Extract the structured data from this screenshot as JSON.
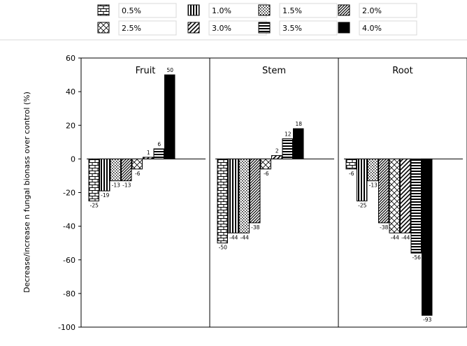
{
  "chart_data": {
    "type": "bar",
    "ylabel": "Decrease/increase n fungal bionass over control (%)",
    "ylim": [
      -100,
      60
    ],
    "yticks": [
      60,
      40,
      20,
      0,
      -20,
      -40,
      -60,
      -80,
      -100
    ],
    "legend_position": "top",
    "legend": [
      {
        "label": "0.5%",
        "pattern": "brick"
      },
      {
        "label": "1.0%",
        "pattern": "vertical-lines"
      },
      {
        "label": "1.5%",
        "pattern": "dots"
      },
      {
        "label": "2.0%",
        "pattern": "diagonal-dense"
      },
      {
        "label": "2.5%",
        "pattern": "crosshatch"
      },
      {
        "label": "3.0%",
        "pattern": "diagonal-wide"
      },
      {
        "label": "3.5%",
        "pattern": "horizontal-lines"
      },
      {
        "label": "4.0%",
        "pattern": "solid"
      }
    ],
    "panels": [
      {
        "title": "Fruit",
        "values": [
          -25,
          -19,
          -13,
          -13,
          -6,
          1,
          6,
          50
        ],
        "labels": [
          "-25",
          "-19",
          "-13",
          "-13",
          "-6",
          "1",
          "6",
          "50"
        ]
      },
      {
        "title": "Stem",
        "values": [
          -50,
          -44,
          -44,
          -38,
          -6,
          2,
          12,
          18
        ],
        "labels": [
          "-50",
          "-44",
          "-44",
          "-38",
          "-6",
          "2",
          "12",
          "18"
        ]
      },
      {
        "title": "Root",
        "values": [
          -6,
          -25,
          -13,
          -38,
          -44,
          -44,
          -56,
          -93
        ],
        "labels": [
          "-6",
          "-25",
          "-13",
          "-38",
          "-44",
          "-44",
          "-56",
          "-93"
        ]
      }
    ]
  }
}
